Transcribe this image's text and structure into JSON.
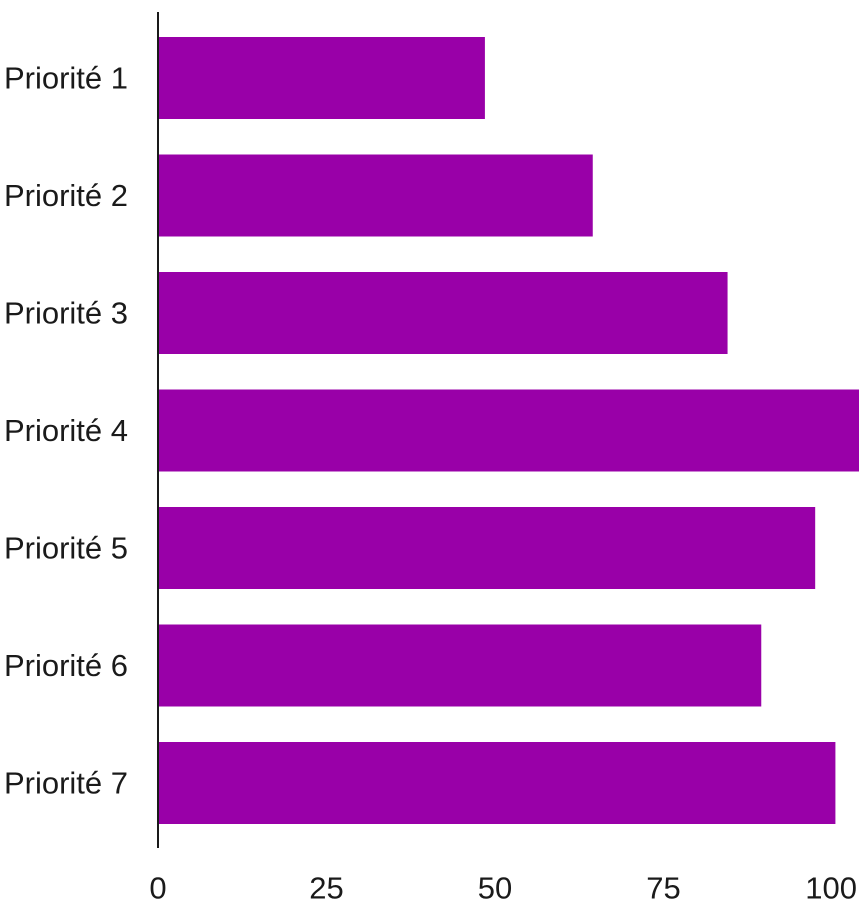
{
  "chart_data": {
    "type": "bar",
    "orientation": "horizontal",
    "categories": [
      "Priorité 1",
      "Priorité 2",
      "Priorité 3",
      "Priorité 4",
      "Priorité 5",
      "Priorité 6",
      "Priorité 7"
    ],
    "values": [
      48.5,
      64.5,
      84.5,
      104,
      97.5,
      89.5,
      100.5
    ],
    "xlim": [
      0,
      104
    ],
    "xticks": [
      0,
      25,
      50,
      75,
      100
    ],
    "tick_labels": [
      "0",
      "25",
      "50",
      "75",
      "100"
    ],
    "title": "",
    "xlabel": "",
    "ylabel": "",
    "grid": false,
    "legend": "none",
    "bar_color": "#9900a8",
    "axis_color": "#1a1a1a"
  }
}
